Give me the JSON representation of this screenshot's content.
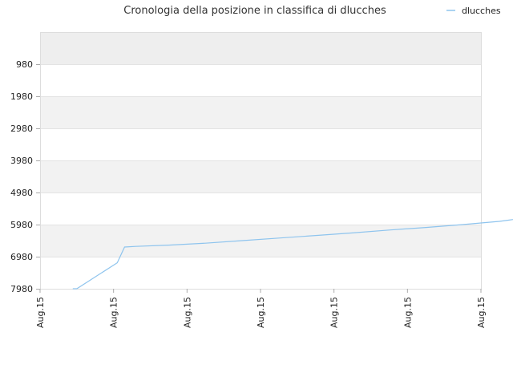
{
  "chart_data": {
    "type": "line",
    "title": "Cronologia della posizione in classifica di dlucches",
    "xlabel": "",
    "ylabel": "",
    "y_inverted": true,
    "ylim": [
      7980,
      -20
    ],
    "yticks": [
      980,
      1980,
      2980,
      3980,
      4980,
      5980,
      6980,
      7980
    ],
    "xtick_labels": [
      "Aug.15",
      "Aug.15",
      "Aug.15",
      "Aug.15",
      "Aug.15",
      "Aug.15",
      "Aug.15",
      "Aug.15",
      "Aug.15",
      "Aug.15",
      "Aug.15",
      "Aug.15",
      "Aug.15"
    ],
    "grid": true,
    "legend_position": "top-right",
    "colors": {
      "series": "#8ec4ee",
      "band_shade": "#f2f2f2",
      "grid": "#e3e3e3"
    },
    "series": [
      {
        "name": "dlucches",
        "x": [
          0.89,
          1.0,
          2.1,
          2.3,
          2.6,
          3.5,
          4.5,
          5.5,
          6.5,
          7.5,
          8.5,
          9.5,
          10.5,
          11.5,
          12.5,
          13.4
        ],
        "y": [
          7980,
          7980,
          7170,
          6680,
          6660,
          6620,
          6560,
          6480,
          6400,
          6320,
          6240,
          6150,
          6070,
          5980,
          5880,
          5740
        ]
      }
    ]
  }
}
